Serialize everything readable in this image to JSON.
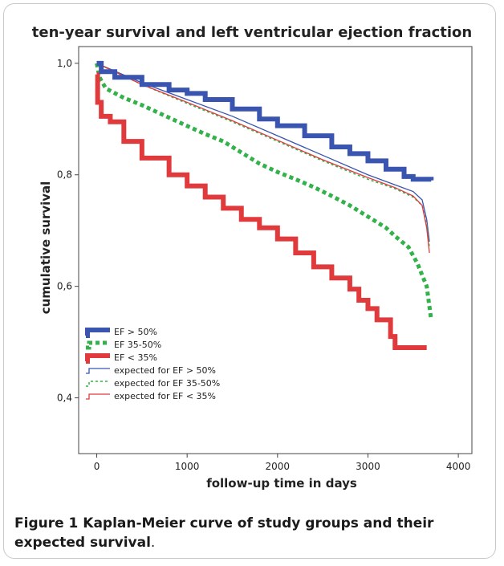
{
  "figure": {
    "caption_bold": "Figure 1 Kaplan-Meier curve of study groups and their expected survival",
    "caption_rest": "."
  },
  "chart_data": {
    "type": "line",
    "title": "ten-year survival and left ventricular ejection fraction",
    "xlabel": "follow-up time in days",
    "ylabel": "cumulative survival",
    "xlim": [
      -200,
      4150
    ],
    "ylim": [
      0.3,
      1.03
    ],
    "xticks": [
      0,
      1000,
      2000,
      3000,
      4000
    ],
    "xtick_labels": [
      "0",
      "1000",
      "2000",
      "3000",
      "4000"
    ],
    "yticks": [
      0.4,
      0.6,
      0.8,
      1.0
    ],
    "ytick_labels": [
      "0,4",
      "0,6",
      "0,8",
      "1,0"
    ],
    "grid": false,
    "legend_position": "bottom-left",
    "series": [
      {
        "name": "EF > 50%",
        "color": "#3a55b0",
        "style": "step-thick",
        "points": [
          [
            0,
            1.0
          ],
          [
            50,
            0.985
          ],
          [
            200,
            0.975
          ],
          [
            500,
            0.962
          ],
          [
            800,
            0.952
          ],
          [
            1000,
            0.946
          ],
          [
            1200,
            0.935
          ],
          [
            1500,
            0.918
          ],
          [
            1800,
            0.9
          ],
          [
            2000,
            0.888
          ],
          [
            2300,
            0.87
          ],
          [
            2600,
            0.85
          ],
          [
            2800,
            0.838
          ],
          [
            3000,
            0.825
          ],
          [
            3200,
            0.81
          ],
          [
            3400,
            0.797
          ],
          [
            3500,
            0.792
          ],
          [
            3700,
            0.79
          ]
        ]
      },
      {
        "name": "EF 35-50%",
        "color": "#33b14a",
        "style": "dotted-thick",
        "points": [
          [
            0,
            1.0
          ],
          [
            30,
            0.975
          ],
          [
            100,
            0.955
          ],
          [
            300,
            0.938
          ],
          [
            500,
            0.925
          ],
          [
            700,
            0.91
          ],
          [
            900,
            0.895
          ],
          [
            1200,
            0.873
          ],
          [
            1400,
            0.86
          ],
          [
            1600,
            0.84
          ],
          [
            1800,
            0.82
          ],
          [
            2000,
            0.805
          ],
          [
            2200,
            0.792
          ],
          [
            2400,
            0.778
          ],
          [
            2600,
            0.762
          ],
          [
            2800,
            0.745
          ],
          [
            3000,
            0.725
          ],
          [
            3200,
            0.705
          ],
          [
            3300,
            0.69
          ],
          [
            3450,
            0.67
          ],
          [
            3550,
            0.64
          ],
          [
            3650,
            0.6
          ],
          [
            3700,
            0.54
          ]
        ]
      },
      {
        "name": "EF < 35%",
        "color": "#e03a3c",
        "style": "step-thick",
        "points": [
          [
            0,
            0.98
          ],
          [
            10,
            0.93
          ],
          [
            50,
            0.905
          ],
          [
            150,
            0.895
          ],
          [
            300,
            0.86
          ],
          [
            500,
            0.83
          ],
          [
            800,
            0.8
          ],
          [
            1000,
            0.78
          ],
          [
            1200,
            0.76
          ],
          [
            1400,
            0.74
          ],
          [
            1600,
            0.72
          ],
          [
            1800,
            0.705
          ],
          [
            2000,
            0.685
          ],
          [
            2200,
            0.66
          ],
          [
            2400,
            0.635
          ],
          [
            2600,
            0.615
          ],
          [
            2800,
            0.595
          ],
          [
            2900,
            0.575
          ],
          [
            3000,
            0.56
          ],
          [
            3100,
            0.54
          ],
          [
            3250,
            0.51
          ],
          [
            3300,
            0.49
          ],
          [
            3650,
            0.49
          ]
        ]
      },
      {
        "name": "expected for EF > 50%",
        "color": "#3a55b0",
        "style": "thin",
        "points": [
          [
            0,
            1.0
          ],
          [
            500,
            0.965
          ],
          [
            1000,
            0.935
          ],
          [
            1500,
            0.905
          ],
          [
            2000,
            0.87
          ],
          [
            2500,
            0.835
          ],
          [
            3000,
            0.8
          ],
          [
            3300,
            0.782
          ],
          [
            3500,
            0.77
          ],
          [
            3600,
            0.755
          ],
          [
            3650,
            0.72
          ],
          [
            3680,
            0.68
          ]
        ]
      },
      {
        "name": "expected for EF 35-50%",
        "color": "#33b14a",
        "style": "dotted-thin",
        "points": [
          [
            0,
            1.0
          ],
          [
            500,
            0.962
          ],
          [
            1000,
            0.928
          ],
          [
            1500,
            0.895
          ],
          [
            2000,
            0.86
          ],
          [
            2500,
            0.825
          ],
          [
            3000,
            0.792
          ],
          [
            3300,
            0.775
          ],
          [
            3500,
            0.76
          ],
          [
            3600,
            0.745
          ],
          [
            3650,
            0.71
          ],
          [
            3680,
            0.67
          ]
        ]
      },
      {
        "name": "expected for EF < 35%",
        "color": "#e03a3c",
        "style": "thin",
        "points": [
          [
            0,
            1.0
          ],
          [
            500,
            0.962
          ],
          [
            1000,
            0.93
          ],
          [
            1500,
            0.897
          ],
          [
            2000,
            0.862
          ],
          [
            2500,
            0.827
          ],
          [
            3000,
            0.795
          ],
          [
            3300,
            0.777
          ],
          [
            3500,
            0.762
          ],
          [
            3600,
            0.745
          ],
          [
            3650,
            0.705
          ],
          [
            3680,
            0.66
          ]
        ]
      }
    ]
  }
}
